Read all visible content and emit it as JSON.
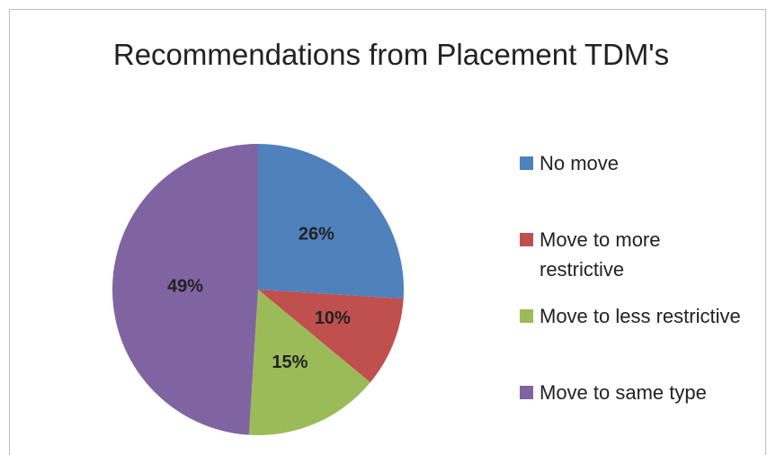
{
  "chart_data": {
    "type": "pie",
    "title": "Recommendations from Placement TDM's",
    "categories": [
      "No move",
      "Move to more restrictive",
      "Move to less restrictive",
      "Move to same type"
    ],
    "values": [
      26,
      10,
      15,
      49
    ],
    "value_labels": [
      "26%",
      "10%",
      "15%",
      "49%"
    ],
    "colors": [
      "#4f81bd",
      "#c0504d",
      "#9bbb59",
      "#8064a2"
    ],
    "legend": "right"
  }
}
